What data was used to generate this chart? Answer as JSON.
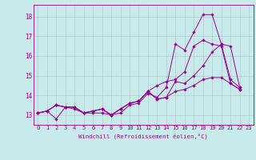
{
  "title": "",
  "xlabel": "Windchill (Refroidissement éolien,°C)",
  "ylabel": "",
  "background_color": "#c8eaea",
  "line_color": "#990099",
  "grid_color": "#b0cccc",
  "xlim": [
    -0.5,
    23.5
  ],
  "ylim": [
    12.5,
    18.6
  ],
  "yticks": [
    13,
    14,
    15,
    16,
    17,
    18
  ],
  "xticks": [
    0,
    1,
    2,
    3,
    4,
    5,
    6,
    7,
    8,
    9,
    10,
    11,
    12,
    13,
    14,
    15,
    16,
    17,
    18,
    19,
    20,
    21,
    22,
    23
  ],
  "series": [
    [
      13.1,
      13.2,
      12.8,
      13.4,
      13.3,
      13.1,
      13.1,
      13.1,
      13.0,
      13.1,
      13.5,
      13.6,
      14.1,
      13.9,
      14.4,
      16.6,
      16.3,
      17.2,
      18.1,
      18.1,
      16.6,
      14.8,
      14.4
    ],
    [
      13.1,
      13.2,
      13.5,
      13.4,
      13.4,
      13.1,
      13.2,
      13.3,
      13.0,
      13.3,
      13.6,
      13.7,
      14.2,
      14.5,
      14.7,
      14.8,
      15.2,
      16.5,
      16.8,
      16.6,
      16.5,
      14.6,
      14.3
    ],
    [
      13.1,
      13.2,
      13.5,
      13.4,
      13.4,
      13.1,
      13.2,
      13.3,
      13.0,
      13.3,
      13.6,
      13.7,
      14.2,
      13.8,
      13.9,
      14.7,
      14.6,
      15.0,
      15.5,
      16.2,
      16.6,
      16.5,
      14.4
    ],
    [
      13.1,
      13.2,
      13.5,
      13.4,
      13.4,
      13.1,
      13.2,
      13.3,
      13.0,
      13.3,
      13.6,
      13.7,
      14.2,
      13.8,
      13.9,
      14.2,
      14.3,
      14.5,
      14.8,
      14.9,
      14.9,
      14.6,
      14.3
    ]
  ],
  "tick_fontsize": 5.0,
  "xlabel_fontsize": 5.2,
  "marker_size": 1.8,
  "line_width": 0.7
}
